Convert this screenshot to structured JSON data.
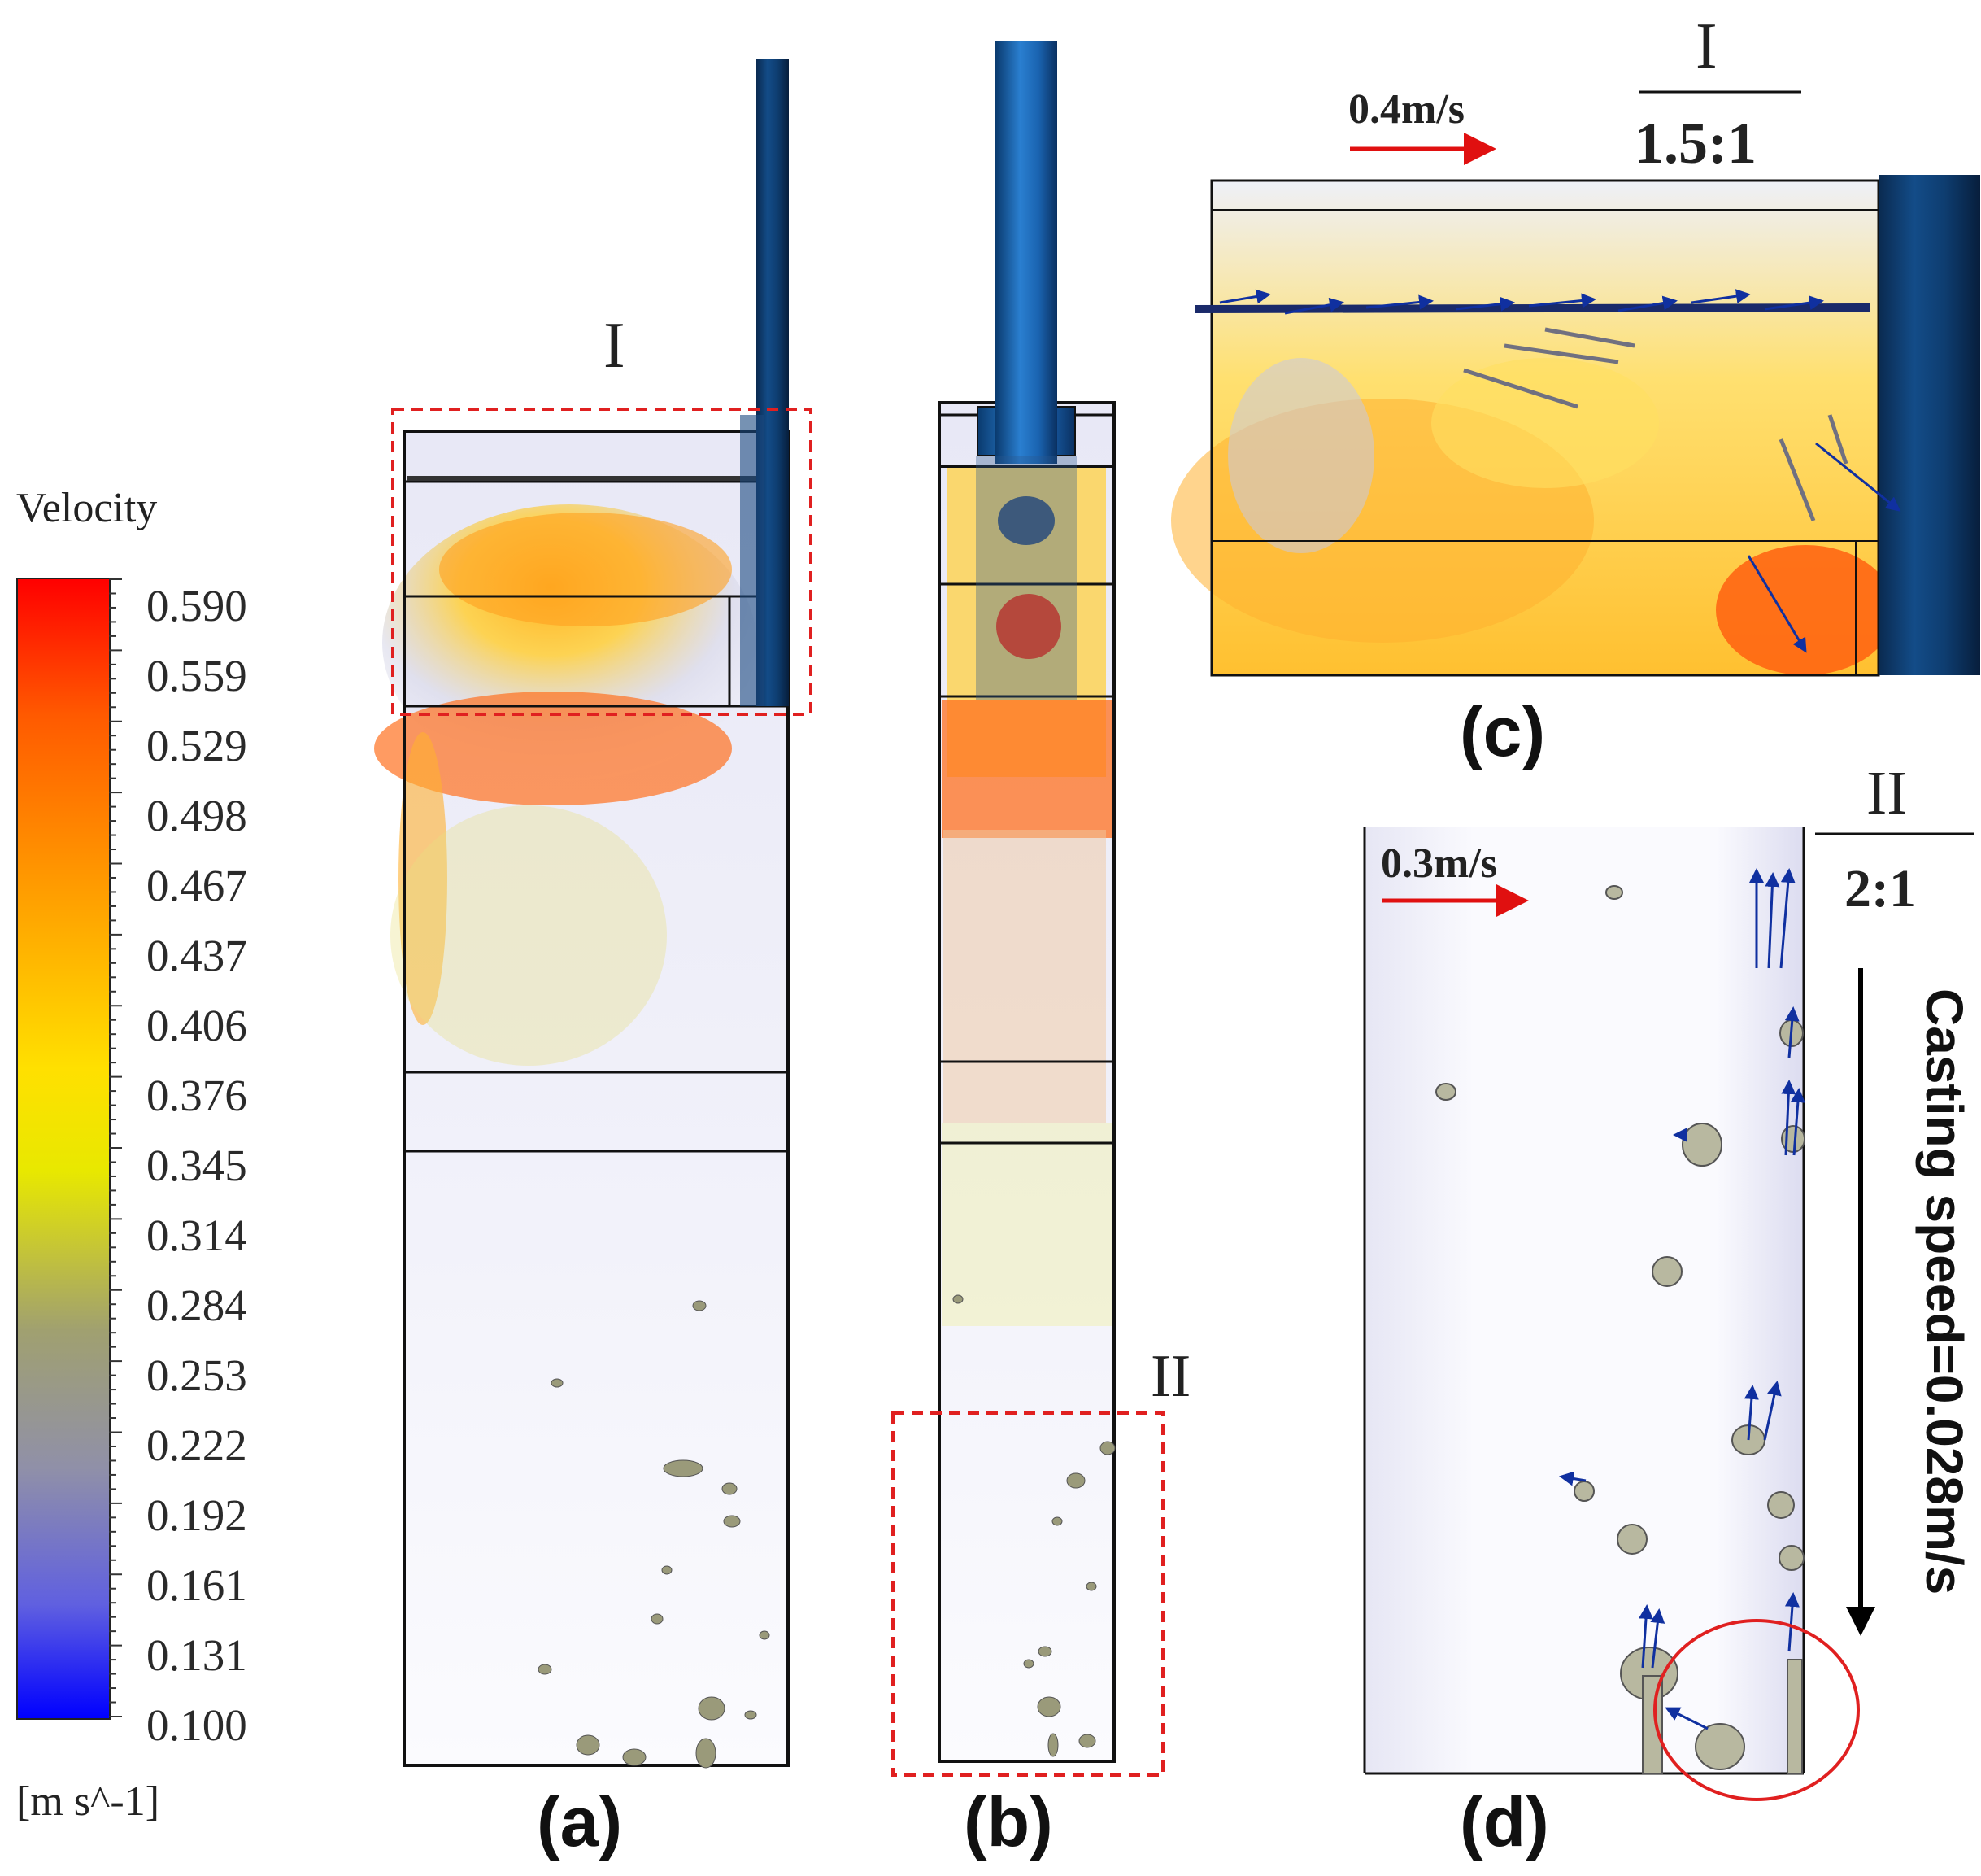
{
  "legend": {
    "title": "Velocity",
    "unit": "[m s^-1]",
    "ticks": [
      "0.590",
      "0.559",
      "0.529",
      "0.498",
      "0.467",
      "0.437",
      "0.406",
      "0.376",
      "0.345",
      "0.314",
      "0.284",
      "0.253",
      "0.222",
      "0.192",
      "0.161",
      "0.131",
      "0.100"
    ],
    "colors": [
      "#ff0000",
      "#ff6000",
      "#ffd000",
      "#ffff00",
      "#a0a060",
      "#9090b0",
      "#0000ff"
    ]
  },
  "panels": {
    "a": {
      "label": "(a)",
      "region_label": "I"
    },
    "b": {
      "label": "(b)",
      "region_label": "II"
    },
    "c": {
      "label": "(c)",
      "zoom_region": "I",
      "zoom_ratio": "1.5:1",
      "scale_arrow": "0.4m/s"
    },
    "d": {
      "label": "(d)",
      "zoom_region": "II",
      "zoom_ratio": "2:1",
      "scale_arrow": "0.3m/s",
      "casting_speed": "Casting speed=0.028m/s"
    }
  },
  "colors": {
    "highlight_box": "#e02020",
    "nozzle": "#0c3a6a",
    "arrow": "#1030a0",
    "circle": "#e02020"
  }
}
